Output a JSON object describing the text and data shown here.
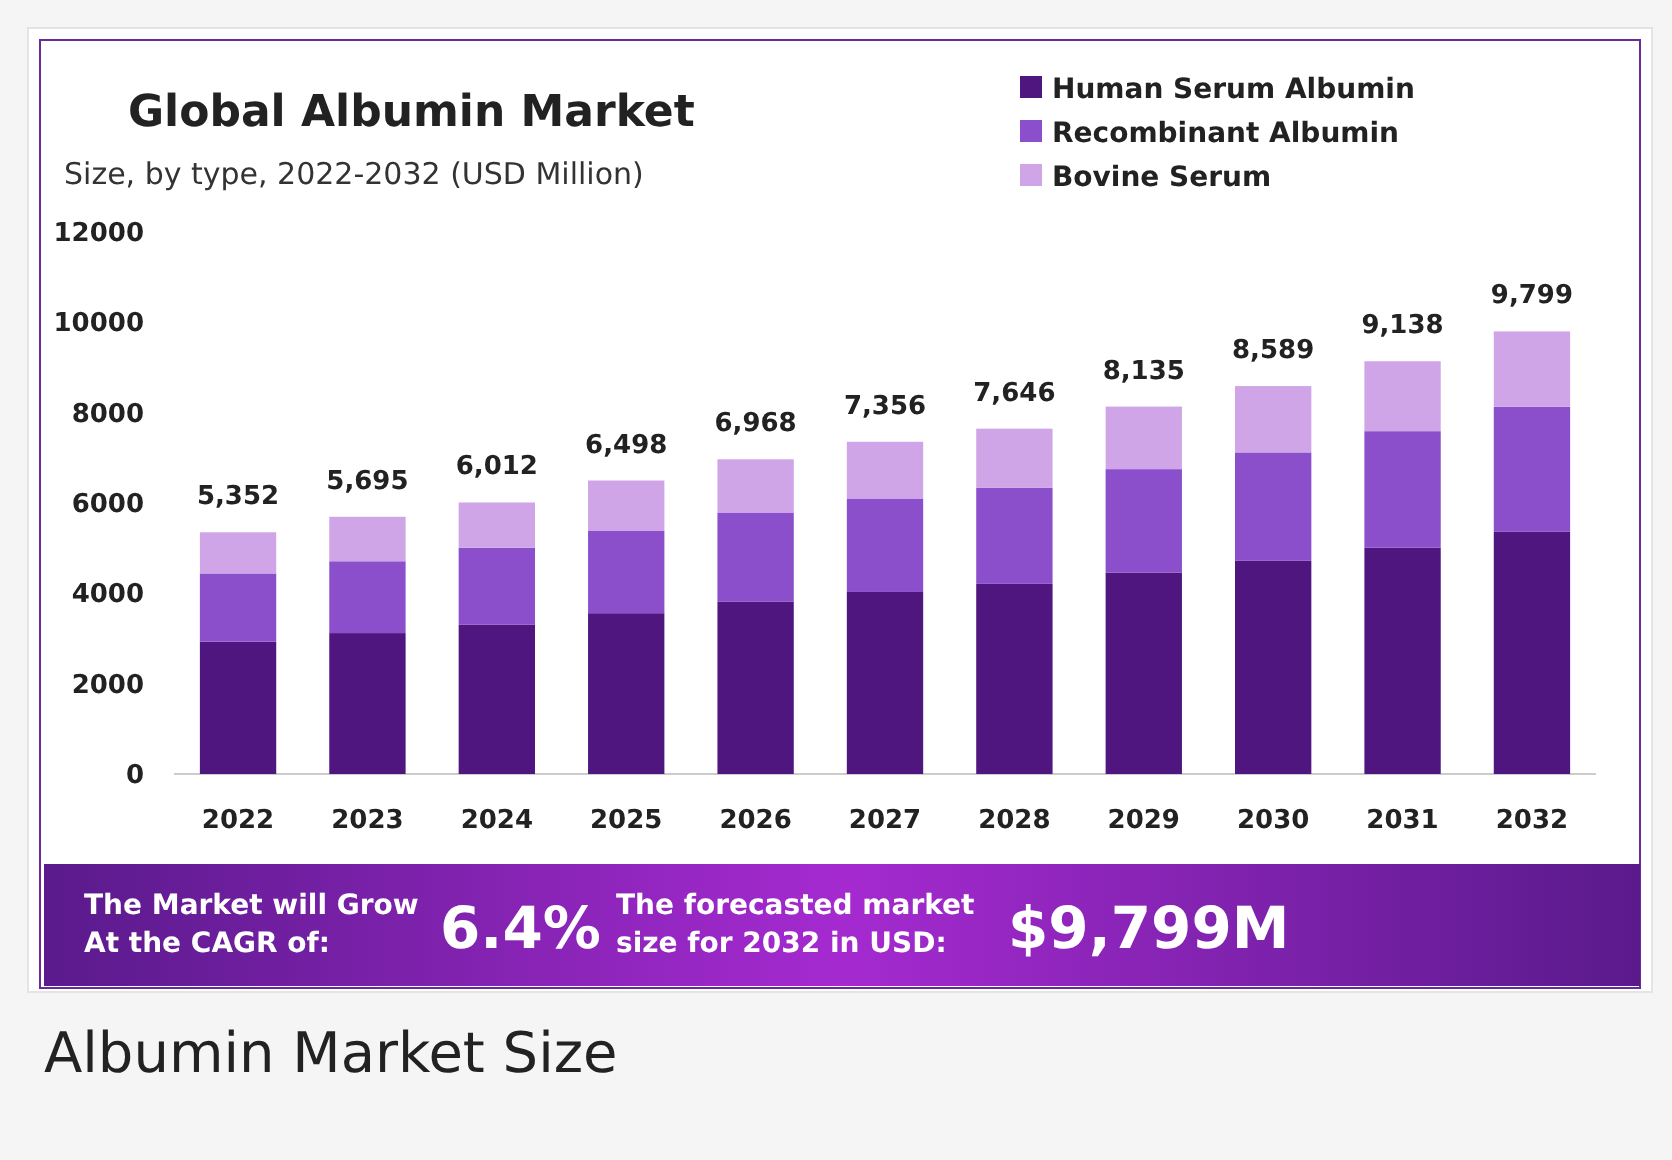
{
  "chart_data": {
    "type": "bar",
    "title": "Global Albumin Market",
    "subtitle": "Size, by type, 2022-2032 (USD Million)",
    "categories": [
      "2022",
      "2023",
      "2024",
      "2025",
      "2026",
      "2027",
      "2028",
      "2029",
      "2030",
      "2031",
      "2032"
    ],
    "series": [
      {
        "name": "Human Serum Albumin",
        "color": "#4f1680",
        "values": [
          2930,
          3120,
          3310,
          3560,
          3820,
          4030,
          4210,
          4460,
          4720,
          5010,
          5370
        ]
      },
      {
        "name": "Recombinant Albumin",
        "color": "#8b4fcc",
        "values": [
          1510,
          1590,
          1700,
          1820,
          1970,
          2070,
          2130,
          2290,
          2400,
          2580,
          2760
        ]
      },
      {
        "name": "Bovine Serum",
        "color": "#cfa5e8",
        "values": [
          912,
          985,
          1002,
          1118,
          1178,
          1256,
          1306,
          1385,
          1469,
          1548,
          1669
        ]
      }
    ],
    "stacked": true,
    "ylim": [
      0,
      12000
    ],
    "yticks": [
      0,
      2000,
      4000,
      6000,
      8000,
      10000,
      12000
    ],
    "totals": [
      "5,352",
      "5,695",
      "6,012",
      "6,498",
      "6,968",
      "7,356",
      "7,646",
      "8,135",
      "8,589",
      "9,138",
      "9,799"
    ],
    "legend": "top right",
    "grid": false,
    "annotations": [
      "The Market will Grow At the CAGR of:",
      "6.4%",
      "The forecasted market size for 2032 in USD:",
      "$9,799M",
      "Albumin Market Size"
    ]
  }
}
